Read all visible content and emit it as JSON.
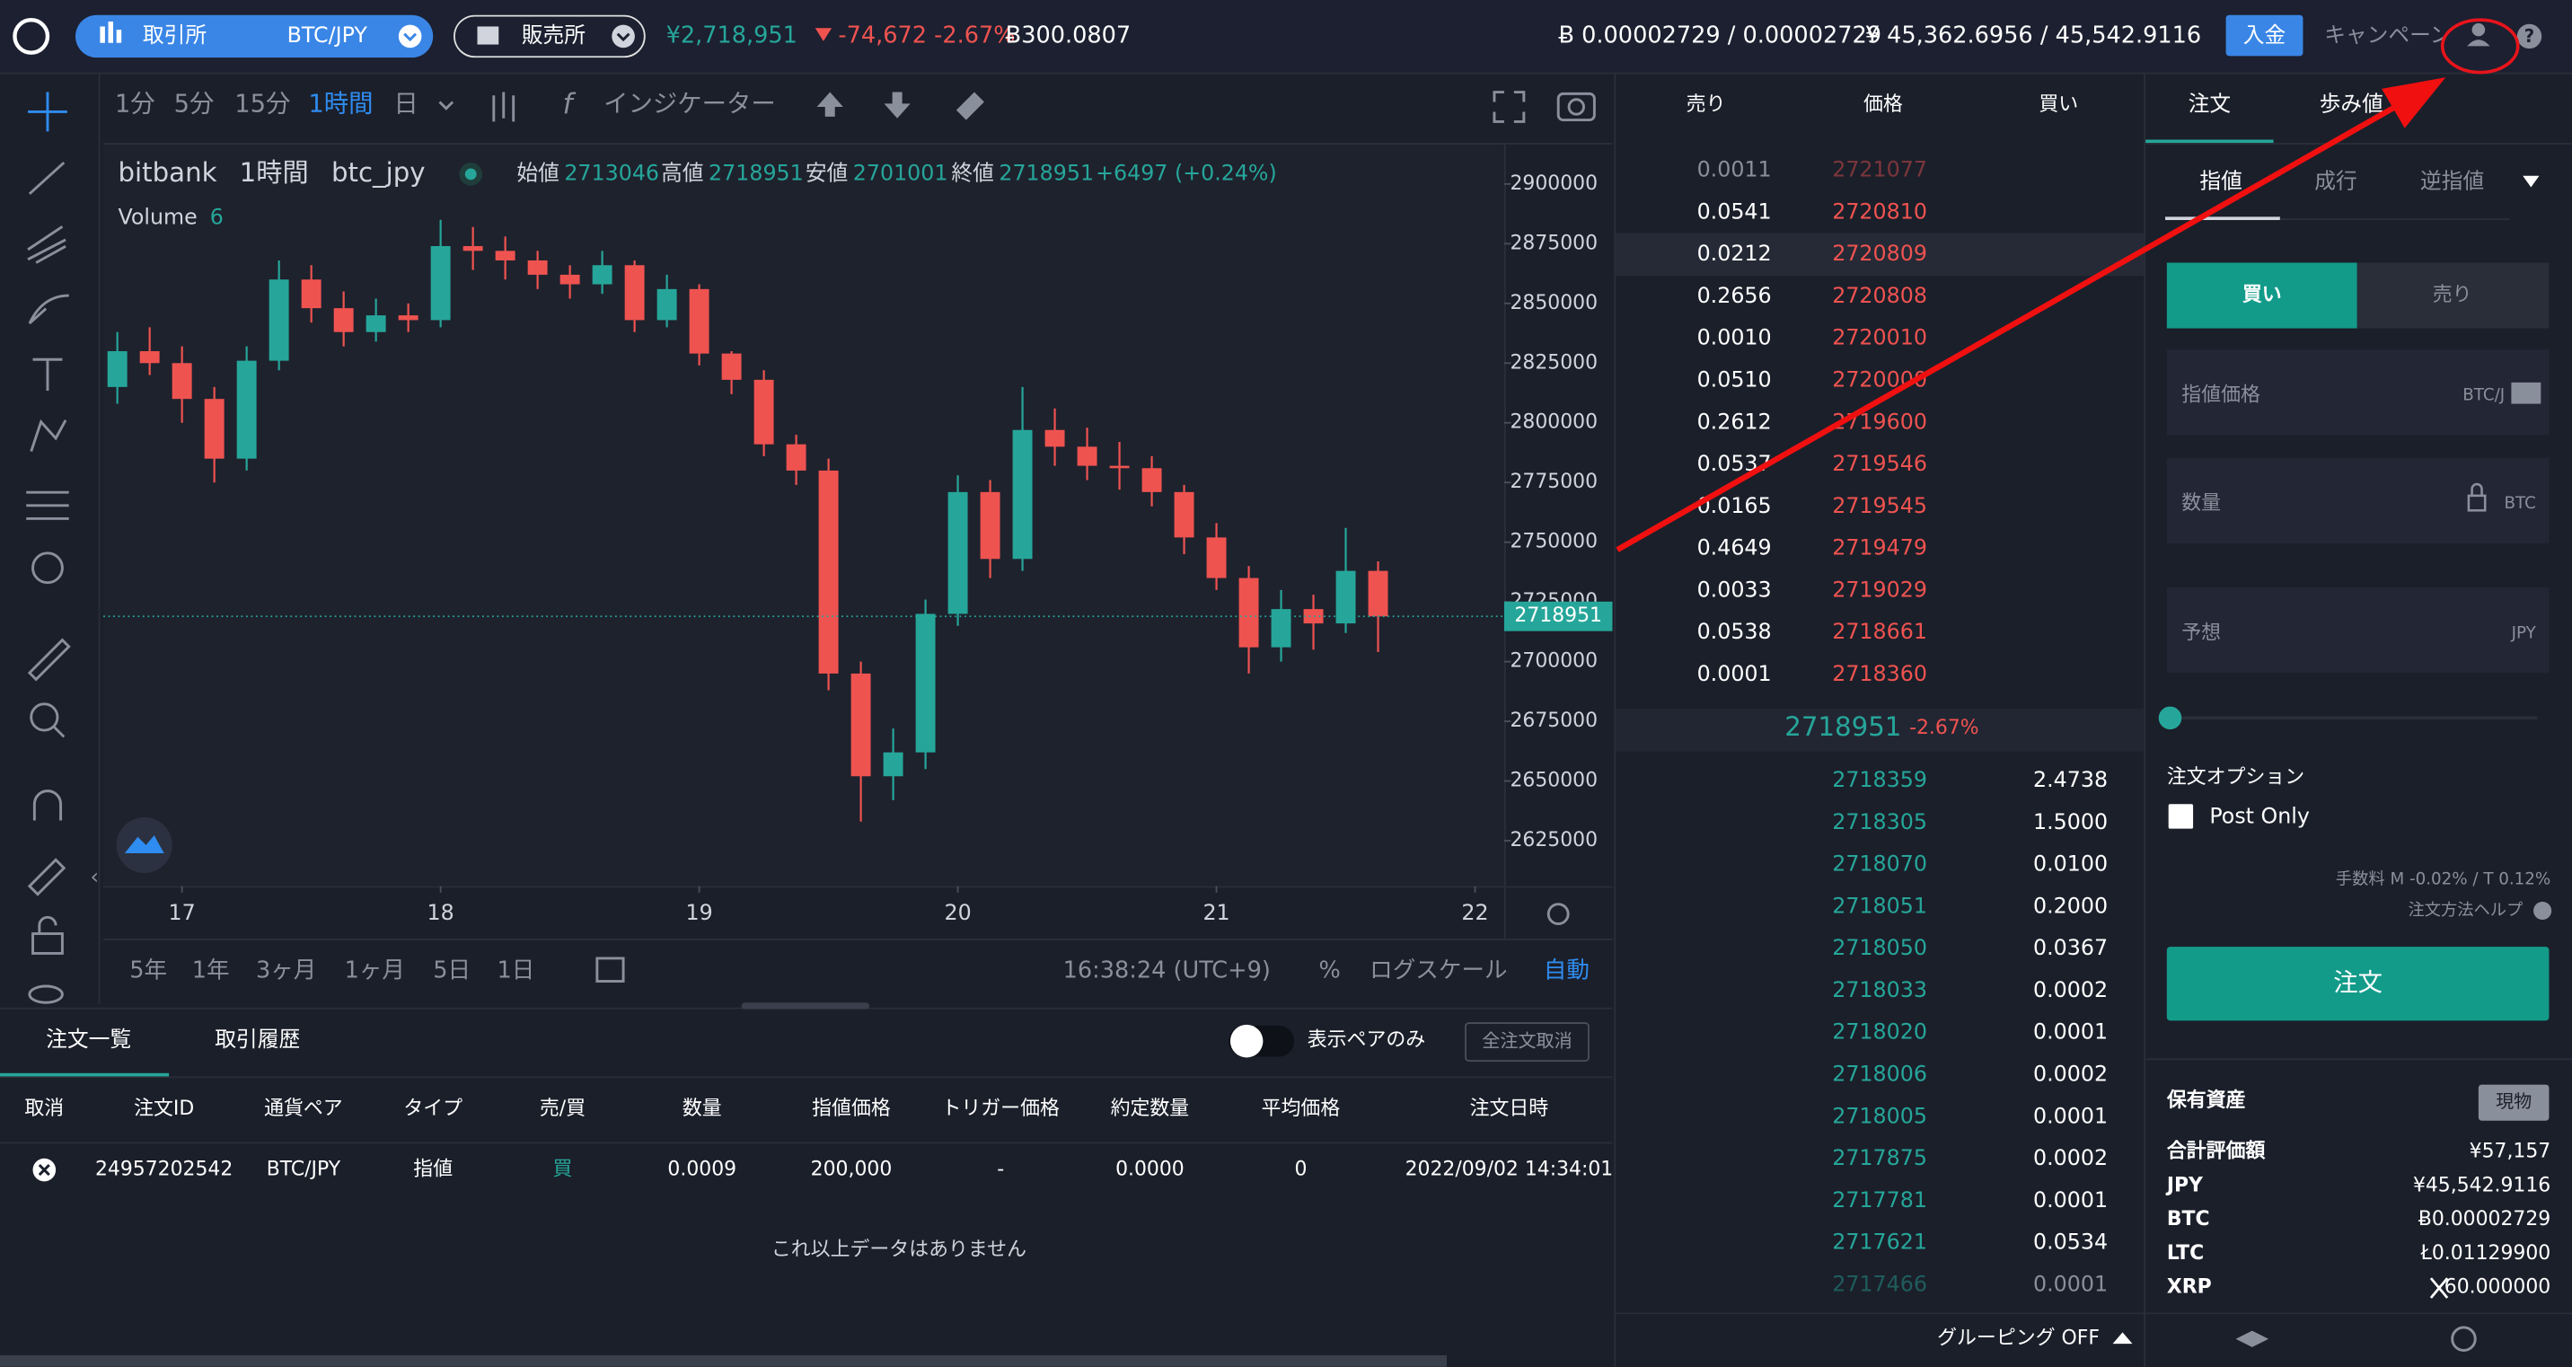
{
  "header": {
    "exchange_tab": "取引所",
    "pair": "BTC/JPY",
    "store": "販売所",
    "price": "¥2,718,951",
    "change": "-74,672 -2.67%",
    "volume": "Ƀ300.0807",
    "btc_balance": "Ƀ 0.00002729 / 0.00002729",
    "jpy_balance": "¥ 45,362.6956 / 45,542.9116",
    "deposit": "入金",
    "campaign": "キャンペーン"
  },
  "toolbar": {
    "intervals": [
      "1分",
      "5分",
      "15分",
      "1時間",
      "日"
    ],
    "indicator": "インジケーター"
  },
  "chart_legend": {
    "exchange": "bitbank",
    "interval": "1時間",
    "symbol": "btc_jpy",
    "open_label": "始値",
    "open": "2713046",
    "high_label": "高値",
    "high": "2718951",
    "low_label": "安値",
    "low": "2701001",
    "close_label": "終値",
    "close": "2718951",
    "change": "+6497 (+0.24%)",
    "volume_label": "Volume",
    "volume": "6"
  },
  "chart_data": {
    "type": "candlestick",
    "x": [
      -6,
      -3,
      0,
      3,
      6,
      9,
      12,
      15,
      18,
      21,
      24,
      27,
      30,
      33,
      36,
      39,
      42,
      45,
      48,
      51,
      54,
      57,
      60,
      63,
      66,
      69,
      72,
      75,
      78,
      81,
      84,
      87,
      90,
      93,
      96,
      99,
      102,
      105,
      108,
      111
    ],
    "open": [
      2815000,
      2830000,
      2825000,
      2810000,
      2785000,
      2826000,
      2860000,
      2848000,
      2838000,
      2845000,
      2843000,
      2874000,
      2872000,
      2868000,
      2862000,
      2858000,
      2866000,
      2843000,
      2856000,
      2829000,
      2818000,
      2791000,
      2780000,
      2695000,
      2652000,
      2662000,
      2720000,
      2771000,
      2743000,
      2797000,
      2790000,
      2782000,
      2781000,
      2771000,
      2752000,
      2735000,
      2706000,
      2722000,
      2716000,
      2738000
    ],
    "high": [
      2838000,
      2840000,
      2832000,
      2815000,
      2832000,
      2868000,
      2866000,
      2855000,
      2852000,
      2850000,
      2885000,
      2882000,
      2878000,
      2872000,
      2866000,
      2872000,
      2868000,
      2862000,
      2858000,
      2830000,
      2822000,
      2795000,
      2785000,
      2700000,
      2672000,
      2726000,
      2778000,
      2776000,
      2815000,
      2806000,
      2798000,
      2792000,
      2786000,
      2774000,
      2758000,
      2740000,
      2730000,
      2728000,
      2756000,
      2742000
    ],
    "low": [
      2808000,
      2820000,
      2800000,
      2775000,
      2780000,
      2822000,
      2842000,
      2832000,
      2834000,
      2838000,
      2840000,
      2864000,
      2860000,
      2856000,
      2852000,
      2854000,
      2838000,
      2840000,
      2824000,
      2812000,
      2786000,
      2774000,
      2688000,
      2633000,
      2642000,
      2655000,
      2715000,
      2735000,
      2738000,
      2782000,
      2776000,
      2772000,
      2765000,
      2745000,
      2730000,
      2695000,
      2700000,
      2705000,
      2712000,
      2704000
    ],
    "close": [
      2830000,
      2825000,
      2810000,
      2785000,
      2826000,
      2860000,
      2848000,
      2838000,
      2845000,
      2843000,
      2874000,
      2872000,
      2868000,
      2862000,
      2858000,
      2866000,
      2843000,
      2856000,
      2829000,
      2818000,
      2791000,
      2780000,
      2695000,
      2652000,
      2662000,
      2720000,
      2771000,
      2743000,
      2797000,
      2790000,
      2782000,
      2781000,
      2771000,
      2752000,
      2735000,
      2706000,
      2722000,
      2716000,
      2738000,
      2718951
    ],
    "up_color": "#26a69a",
    "down_color": "#ef5350",
    "last_price": 2718951,
    "xlim": [
      -7.3,
      122.7
    ],
    "xticks": [
      {
        "value": 0,
        "label": "17"
      },
      {
        "value": 24,
        "label": "18"
      },
      {
        "value": 48,
        "label": "19"
      },
      {
        "value": 72,
        "label": "20"
      },
      {
        "value": 96,
        "label": "21"
      },
      {
        "value": 120,
        "label": "22"
      }
    ],
    "ylim": [
      2606000,
      2916500
    ],
    "yticks": [
      2625000,
      2650000,
      2675000,
      2700000,
      2725000,
      2750000,
      2775000,
      2800000,
      2825000,
      2850000,
      2875000,
      2900000
    ]
  },
  "chart_footer": {
    "ranges": [
      "5年",
      "1年",
      "3ヶ月",
      "1ヶ月",
      "5日",
      "1日"
    ],
    "time": "16:38:24 (UTC+9)",
    "percent": "%",
    "log": "ログスケール",
    "auto": "自動"
  },
  "orders": {
    "tabs": [
      "注文一覧",
      "取引履歴"
    ],
    "pair_only": "表示ペアのみ",
    "cancel_all": "全注文取消",
    "headers": [
      "取消",
      "注文ID",
      "通貨ペア",
      "タイプ",
      "売/買",
      "数量",
      "指値価格",
      "トリガー価格",
      "約定数量",
      "平均価格",
      "注文日時"
    ],
    "rows": [
      [
        "24957202542",
        "BTC/JPY",
        "指値",
        "買",
        "0.0009",
        "200,000",
        "-",
        "0.0000",
        "0",
        "2022/09/02 14:34:01"
      ]
    ],
    "empty": "これ以上データはありません"
  },
  "order_book": {
    "headers": [
      "売り",
      "価格",
      "買い"
    ],
    "asks": [
      [
        "0.0011",
        "2721077"
      ],
      [
        "0.0541",
        "2720810"
      ],
      [
        "0.0212",
        "2720809"
      ],
      [
        "0.2656",
        "2720808"
      ],
      [
        "0.0010",
        "2720010"
      ],
      [
        "0.0510",
        "2720000"
      ],
      [
        "0.2612",
        "2719600"
      ],
      [
        "0.0537",
        "2719546"
      ],
      [
        "0.0165",
        "2719545"
      ],
      [
        "0.4649",
        "2719479"
      ],
      [
        "0.0033",
        "2719029"
      ],
      [
        "0.0538",
        "2718661"
      ],
      [
        "0.0001",
        "2718360"
      ]
    ],
    "mid_price": "2718951",
    "mid_change": "-2.67%",
    "bids": [
      [
        "2718359",
        "2.4738"
      ],
      [
        "2718305",
        "1.5000"
      ],
      [
        "2718070",
        "0.0100"
      ],
      [
        "2718051",
        "0.2000"
      ],
      [
        "2718050",
        "0.0367"
      ],
      [
        "2718033",
        "0.0002"
      ],
      [
        "2718020",
        "0.0001"
      ],
      [
        "2718006",
        "0.0002"
      ],
      [
        "2718005",
        "0.0001"
      ],
      [
        "2717875",
        "0.0002"
      ],
      [
        "2717781",
        "0.0001"
      ],
      [
        "2717621",
        "0.0534"
      ],
      [
        "2717466",
        "0.0001"
      ]
    ],
    "grouping": "グルーピング OFF"
  },
  "order_form": {
    "tabs": [
      "注文",
      "歩み値"
    ],
    "types": [
      "指値",
      "成行",
      "逆指値"
    ],
    "sides": [
      "買い",
      "売り"
    ],
    "fields": [
      {
        "label": "指値価格",
        "unit": "BTC/J"
      },
      {
        "label": "数量",
        "unit": "BTC"
      },
      {
        "label": "予想",
        "unit": "JPY"
      }
    ],
    "options_label": "注文オプション",
    "post_only": "Post Only",
    "fee": "手数料 M -0.02% / T 0.12%",
    "help": "注文方法ヘルプ",
    "submit": "注文",
    "assets_title": "保有資産",
    "assets_badge": "現物",
    "assets": [
      [
        "合計評価額",
        "¥57,157"
      ],
      [
        "JPY",
        "¥45,542.9116"
      ],
      [
        "BTC",
        "Ƀ0.00002729"
      ],
      [
        "LTC",
        "Ł0.01129900"
      ],
      [
        "XRP",
        "60.000000"
      ]
    ]
  }
}
